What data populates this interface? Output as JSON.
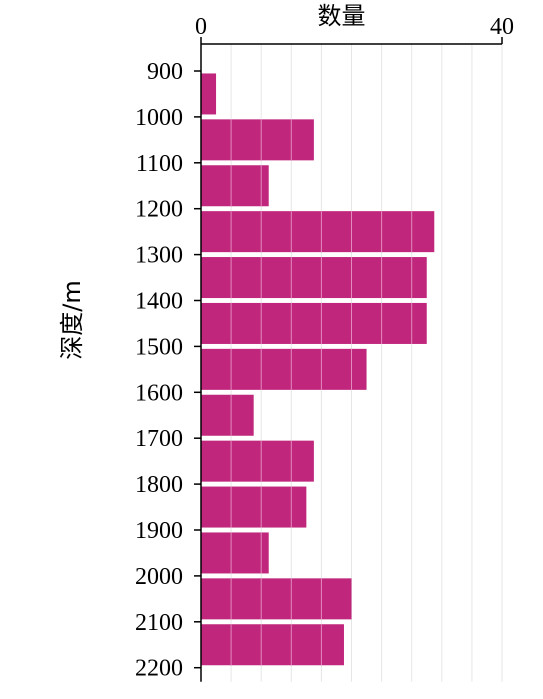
{
  "chart_data": {
    "type": "bar",
    "orientation": "horizontal",
    "categories": [
      "900",
      "1000",
      "1100",
      "1200",
      "1300",
      "1400",
      "1500",
      "1600",
      "1700",
      "1800",
      "1900",
      "2000",
      "2100"
    ],
    "values": [
      2,
      15,
      9,
      31,
      30,
      30,
      22,
      7,
      15,
      14,
      9,
      20,
      19
    ],
    "xlabel": "数量",
    "ylabel": "深度/m",
    "xlim": [
      0,
      40
    ],
    "x_tick_labels": [
      "0",
      "40"
    ],
    "y_tick_labels": [
      "900",
      "1000",
      "1100",
      "1200",
      "1300",
      "1400",
      "1500",
      "1600",
      "1700",
      "1800",
      "1900",
      "2000",
      "2100",
      "2200"
    ],
    "x_axis_position": "top",
    "grid": true,
    "bar_color": "#c0267c"
  }
}
